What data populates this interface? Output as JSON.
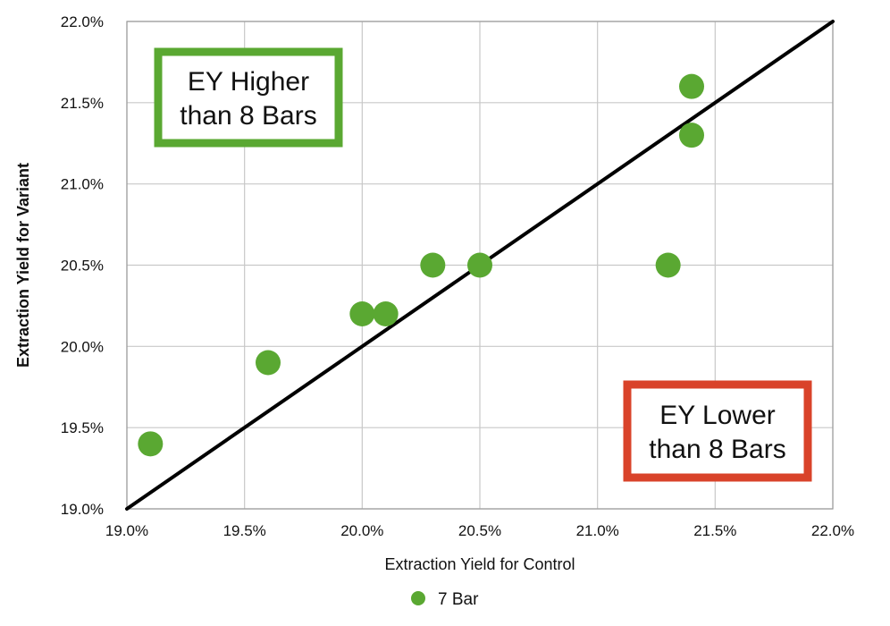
{
  "chart_data": {
    "type": "scatter",
    "xlabel": "Extraction Yield for Control",
    "ylabel": "Extraction Yield for Variant",
    "xlim": [
      19.0,
      22.0
    ],
    "ylim": [
      19.0,
      22.0
    ],
    "x_ticks": [
      "19.0%",
      "19.5%",
      "20.0%",
      "20.5%",
      "21.0%",
      "21.5%",
      "22.0%"
    ],
    "y_ticks": [
      "19.0%",
      "19.5%",
      "20.0%",
      "20.5%",
      "21.0%",
      "21.5%",
      "22.0%"
    ],
    "grid": true,
    "series": [
      {
        "name": "7 Bar",
        "color": "#5aa832",
        "points": [
          {
            "x": 19.1,
            "y": 19.4
          },
          {
            "x": 19.6,
            "y": 19.9
          },
          {
            "x": 20.0,
            "y": 20.2
          },
          {
            "x": 20.1,
            "y": 20.2
          },
          {
            "x": 20.3,
            "y": 20.5
          },
          {
            "x": 20.5,
            "y": 20.5
          },
          {
            "x": 21.3,
            "y": 20.5
          },
          {
            "x": 21.4,
            "y": 21.3
          },
          {
            "x": 21.4,
            "y": 21.6
          }
        ]
      }
    ],
    "reference_line": {
      "from": [
        19.0,
        19.0
      ],
      "to": [
        22.0,
        22.0
      ],
      "color": "#000000"
    },
    "annotations": [
      {
        "lines": [
          "EY Higher",
          "than 8 Bars"
        ],
        "border_color": "#5aa832"
      },
      {
        "lines": [
          "EY Lower",
          "than 8 Bars"
        ],
        "border_color": "#d9432a"
      }
    ],
    "legend": {
      "position": "bottom-center",
      "label": "7 Bar"
    }
  }
}
